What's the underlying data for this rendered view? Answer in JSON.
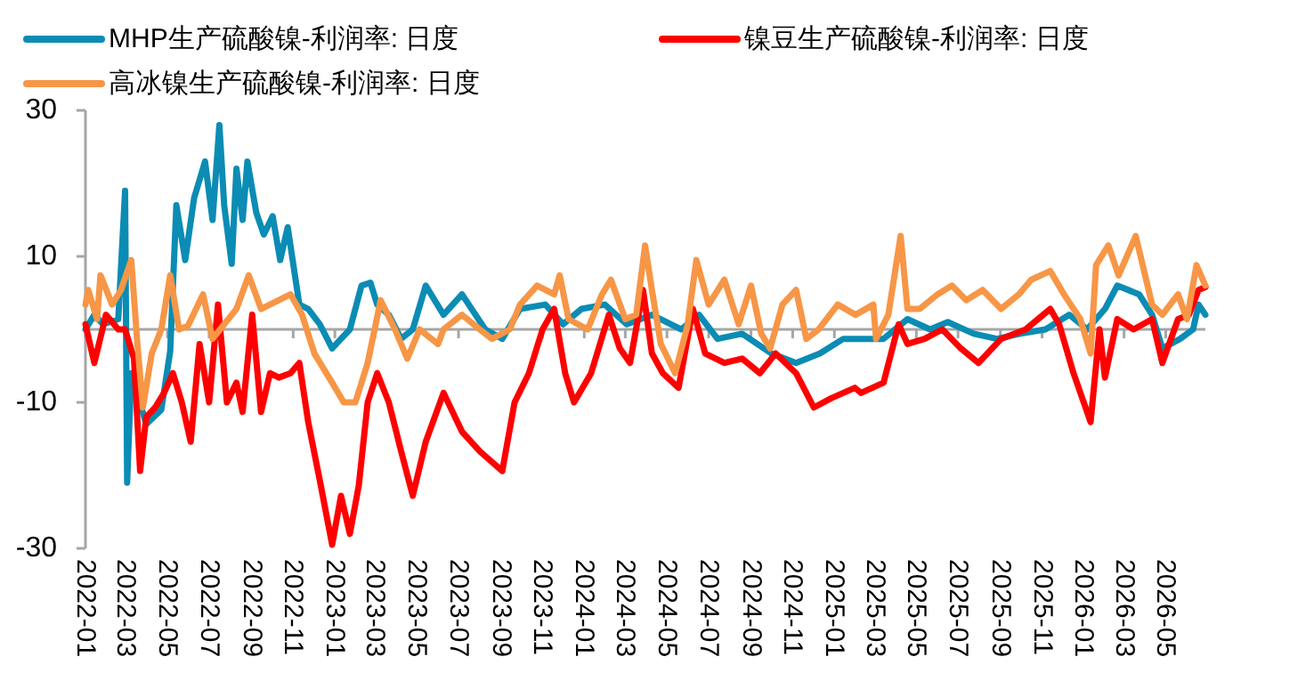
{
  "chart_data": {
    "type": "line",
    "legend": "top",
    "xlim": [
      "2022-01-01",
      "2026-06-28"
    ],
    "ylim": [
      -30,
      30
    ],
    "yticks": [
      -30,
      -10,
      10,
      30
    ],
    "xticks": [
      "2022-01",
      "2022-03",
      "2022-05",
      "2022-07",
      "2022-09",
      "2022-11",
      "2023-01",
      "2023-03",
      "2023-05",
      "2023-07",
      "2023-09",
      "2023-11",
      "2024-01",
      "2024-03",
      "2024-05",
      "2024-07",
      "2024-09",
      "2024-11",
      "2025-01",
      "2025-03",
      "2025-05",
      "2025-07",
      "2025-09",
      "2025-11",
      "2026-01",
      "2026-03",
      "2026-05"
    ],
    "series": [
      {
        "name": "MHP生产硫酸镍-利润率: 日度",
        "color": "#0b8cb4",
        "x": [
          "2022-01-01",
          "2022-01-14",
          "2022-01-27",
          "2022-02-18",
          "2022-02-28",
          "2022-03-03",
          "2022-03-09",
          "2022-03-31",
          "2022-04-22",
          "2022-05-05",
          "2022-05-14",
          "2022-05-27",
          "2022-06-09",
          "2022-06-25",
          "2022-07-06",
          "2022-07-16",
          "2022-07-23",
          "2022-08-03",
          "2022-08-10",
          "2022-08-19",
          "2022-08-26",
          "2022-09-08",
          "2022-09-19",
          "2022-10-02",
          "2022-10-13",
          "2022-10-24",
          "2022-11-01",
          "2022-11-10",
          "2022-11-23",
          "2022-12-10",
          "2022-12-28",
          "2023-01-10",
          "2023-01-23",
          "2023-02-09",
          "2023-02-22",
          "2023-03-04",
          "2023-03-21",
          "2023-04-08",
          "2023-04-25",
          "2023-05-14",
          "2023-06-09",
          "2023-07-06",
          "2023-08-09",
          "2023-09-03",
          "2023-09-29",
          "2023-11-05",
          "2023-12-01",
          "2023-12-28",
          "2024-01-31",
          "2024-03-03",
          "2024-04-09",
          "2024-05-22",
          "2024-06-17",
          "2024-07-14",
          "2024-08-19",
          "2024-10-01",
          "2024-11-06",
          "2024-12-11",
          "2025-01-14",
          "2025-02-09",
          "2025-03-14",
          "2025-04-18",
          "2025-05-21",
          "2025-06-16",
          "2025-07-24",
          "2025-08-27",
          "2025-09-30",
          "2025-11-06",
          "2025-12-11",
          "2026-01-06",
          "2026-02-01",
          "2026-02-19",
          "2026-03-23",
          "2026-04-11",
          "2026-04-26",
          "2026-05-22",
          "2026-06-10",
          "2026-06-18",
          "2026-06-28"
        ],
        "values": [
          0,
          2,
          0.7,
          1.4,
          19,
          -21,
          -6,
          -13,
          -11,
          -3,
          17,
          9.5,
          18,
          23,
          15,
          28,
          17,
          9,
          22,
          15,
          23,
          16,
          13,
          15.5,
          9.5,
          14,
          9,
          3.4,
          2.8,
          0.7,
          -2.6,
          -1.3,
          0,
          6,
          6.4,
          3.4,
          2,
          -1.3,
          0,
          6,
          2,
          4.8,
          0,
          -1.3,
          2.8,
          3.4,
          0.7,
          2.8,
          3.4,
          0.7,
          2,
          0,
          2,
          -1.3,
          -0.6,
          -3.3,
          -4.6,
          -3.3,
          -1.3,
          -1.3,
          -1.3,
          1.4,
          0,
          1,
          -0.6,
          -1.3,
          -0.6,
          0,
          2,
          0,
          2.8,
          6,
          4.8,
          2,
          -2.6,
          -1.3,
          0,
          3.4,
          2
        ]
      },
      {
        "name": "镍豆生产硫酸镍-利润率: 日度",
        "color": "#ff0000",
        "x": [
          "2022-01-01",
          "2022-01-14",
          "2022-01-31",
          "2022-02-18",
          "2022-02-28",
          "2022-03-13",
          "2022-03-22",
          "2022-03-31",
          "2022-04-13",
          "2022-04-26",
          "2022-05-09",
          "2022-05-22",
          "2022-06-04",
          "2022-06-17",
          "2022-07-01",
          "2022-07-14",
          "2022-07-27",
          "2022-08-10",
          "2022-08-19",
          "2022-09-02",
          "2022-09-15",
          "2022-09-28",
          "2022-10-11",
          "2022-10-28",
          "2022-11-10",
          "2022-11-23",
          "2022-12-10",
          "2022-12-28",
          "2023-01-10",
          "2023-01-23",
          "2023-02-05",
          "2023-02-18",
          "2023-03-04",
          "2023-03-21",
          "2023-04-08",
          "2023-04-25",
          "2023-05-14",
          "2023-06-09",
          "2023-07-06",
          "2023-08-01",
          "2023-09-03",
          "2023-09-21",
          "2023-10-12",
          "2023-11-01",
          "2023-11-18",
          "2023-12-04",
          "2023-12-17",
          "2024-01-11",
          "2024-02-06",
          "2024-02-22",
          "2024-03-08",
          "2024-03-27",
          "2024-04-09",
          "2024-04-25",
          "2024-05-18",
          "2024-06-08",
          "2024-06-26",
          "2024-07-24",
          "2024-08-19",
          "2024-09-14",
          "2024-10-07",
          "2024-11-06",
          "2024-12-02",
          "2024-12-28",
          "2025-01-31",
          "2025-02-09",
          "2025-03-14",
          "2025-04-05",
          "2025-04-18",
          "2025-05-13",
          "2025-06-08",
          "2025-07-05",
          "2025-07-31",
          "2025-09-02",
          "2025-10-08",
          "2025-11-13",
          "2025-11-26",
          "2025-12-17",
          "2026-01-11",
          "2026-01-24",
          "2026-02-01",
          "2026-02-19",
          "2026-03-15",
          "2026-04-11",
          "2026-04-26",
          "2026-05-19",
          "2026-06-04",
          "2026-06-18",
          "2026-06-28"
        ],
        "values": [
          0.7,
          -4.6,
          2,
          0,
          0,
          -4,
          -19.4,
          -12,
          -10.7,
          -8.7,
          -6,
          -10,
          -15.4,
          -2,
          -10,
          3.4,
          -10,
          -7.3,
          -11.3,
          2,
          -11.3,
          -6,
          -6.6,
          -6,
          -4.6,
          -12.7,
          -20.7,
          -29.5,
          -22.8,
          -28,
          -21.4,
          -10,
          -6,
          -10,
          -16.7,
          -22.8,
          -15.4,
          -8.7,
          -14,
          -16.7,
          -19.4,
          -10,
          -6,
          0,
          2.8,
          -6,
          -10,
          -6,
          2,
          -2.6,
          -4.6,
          5.4,
          -3.3,
          -6,
          -8,
          2.8,
          -3.3,
          -4.6,
          -4,
          -6,
          -3.3,
          -6,
          -10.7,
          -9.4,
          -8,
          -8.7,
          -7.3,
          0.7,
          -2,
          -1.3,
          0,
          -2.6,
          -4.6,
          -1.3,
          0,
          2.8,
          0.7,
          -6,
          -12.7,
          0,
          -6.6,
          1.4,
          0,
          1.4,
          -4.6,
          1.4,
          2,
          5.4,
          5.8
        ]
      },
      {
        "name": "高冰镍生产硫酸镍-利润率: 日度",
        "color": "#f79646",
        "x": [
          "2022-01-01",
          "2022-01-05",
          "2022-01-18",
          "2022-01-23",
          "2022-02-09",
          "2022-02-22",
          "2022-03-09",
          "2022-03-18",
          "2022-03-26",
          "2022-04-08",
          "2022-04-22",
          "2022-05-05",
          "2022-05-18",
          "2022-05-31",
          "2022-06-22",
          "2022-07-06",
          "2022-07-23",
          "2022-08-10",
          "2022-08-28",
          "2022-09-15",
          "2022-10-11",
          "2022-10-28",
          "2022-11-14",
          "2022-12-02",
          "2022-12-28",
          "2023-01-14",
          "2023-01-31",
          "2023-02-18",
          "2023-03-09",
          "2023-03-30",
          "2023-04-17",
          "2023-05-05",
          "2023-06-01",
          "2023-06-09",
          "2023-07-06",
          "2023-08-01",
          "2023-08-19",
          "2023-09-14",
          "2023-09-29",
          "2023-10-24",
          "2023-11-18",
          "2023-11-26",
          "2023-12-09",
          "2024-01-06",
          "2024-01-27",
          "2024-02-09",
          "2024-03-01",
          "2024-03-17",
          "2024-03-30",
          "2024-04-09",
          "2024-04-22",
          "2024-05-13",
          "2024-05-31",
          "2024-06-13",
          "2024-07-01",
          "2024-07-24",
          "2024-08-14",
          "2024-09-01",
          "2024-09-16",
          "2024-09-29",
          "2024-10-17",
          "2024-11-06",
          "2024-11-21",
          "2024-12-09",
          "2025-01-06",
          "2025-02-01",
          "2025-02-27",
          "2025-03-03",
          "2025-03-21",
          "2025-04-08",
          "2025-04-18",
          "2025-05-06",
          "2025-06-01",
          "2025-06-22",
          "2025-07-13",
          "2025-08-06",
          "2025-09-02",
          "2025-09-28",
          "2025-10-16",
          "2025-11-13",
          "2025-12-03",
          "2025-12-27",
          "2026-01-11",
          "2026-01-19",
          "2026-02-06",
          "2026-02-21",
          "2026-03-18",
          "2026-04-11",
          "2026-04-26",
          "2026-05-19",
          "2026-06-01",
          "2026-06-15",
          "2026-06-28"
        ],
        "values": [
          3.4,
          5.4,
          1.4,
          7.4,
          3.4,
          5.4,
          9.5,
          -2,
          -10.7,
          -3.3,
          0,
          7.4,
          0,
          0.5,
          4.8,
          -1.3,
          0.7,
          2.8,
          7.4,
          2.8,
          4,
          4.8,
          2,
          -3.3,
          -7.3,
          -10,
          -10,
          -4.6,
          4,
          0,
          -4,
          0,
          -2,
          0,
          2,
          0,
          -1.3,
          0,
          3.4,
          6,
          4.8,
          7.4,
          1.4,
          0,
          4.8,
          6.8,
          1.4,
          2,
          11.5,
          5.4,
          -2,
          -6,
          0.5,
          9.5,
          3.4,
          6.8,
          0.7,
          6,
          -0.6,
          -2.6,
          3.4,
          5.4,
          -1.3,
          0,
          3.4,
          2,
          3.4,
          -1.3,
          2,
          12.8,
          2.8,
          2.8,
          4.8,
          6,
          4,
          5.4,
          2.8,
          4.8,
          6.8,
          8,
          4.8,
          1.4,
          -3.3,
          8.8,
          11.5,
          7.4,
          12.8,
          3.4,
          2,
          4.8,
          1.4,
          8.8,
          6
        ]
      }
    ]
  }
}
